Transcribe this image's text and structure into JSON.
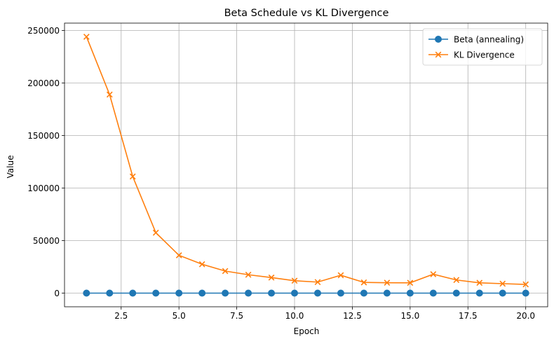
{
  "chart_data": {
    "type": "line",
    "title": "Beta Schedule vs KL Divergence",
    "xlabel": "Epoch",
    "ylabel": "Value",
    "xlim": [
      0.05,
      20.95
    ],
    "ylim": [
      -13000,
      257000
    ],
    "xticks": [
      2.5,
      5.0,
      7.5,
      10.0,
      12.5,
      15.0,
      17.5,
      20.0
    ],
    "xtick_labels": [
      "2.5",
      "5.0",
      "7.5",
      "10.0",
      "12.5",
      "15.0",
      "17.5",
      "20.0"
    ],
    "yticks": [
      0,
      50000,
      100000,
      150000,
      200000,
      250000
    ],
    "ytick_labels": [
      "0",
      "50000",
      "100000",
      "150000",
      "200000",
      "250000"
    ],
    "grid": true,
    "legend_position": "upper right",
    "x": [
      1,
      2,
      3,
      4,
      5,
      6,
      7,
      8,
      9,
      10,
      11,
      12,
      13,
      14,
      15,
      16,
      17,
      18,
      19,
      20
    ],
    "series": [
      {
        "name": "Beta (annealing)",
        "color": "#1f77b4",
        "marker": "circle",
        "values": [
          0,
          0.05,
          0.1,
          0.15,
          0.2,
          0.25,
          0.3,
          0.35,
          0.4,
          0.45,
          0.5,
          0.55,
          0.6,
          0.65,
          0.7,
          0.75,
          0.8,
          0.85,
          0.9,
          0.95
        ]
      },
      {
        "name": "KL Divergence",
        "color": "#ff7f0e",
        "marker": "x",
        "values": [
          244000,
          189000,
          111000,
          57500,
          36000,
          27500,
          21000,
          17500,
          14800,
          11800,
          10500,
          17000,
          10200,
          9900,
          9800,
          18000,
          12500,
          9800,
          9000,
          8300
        ]
      }
    ]
  }
}
